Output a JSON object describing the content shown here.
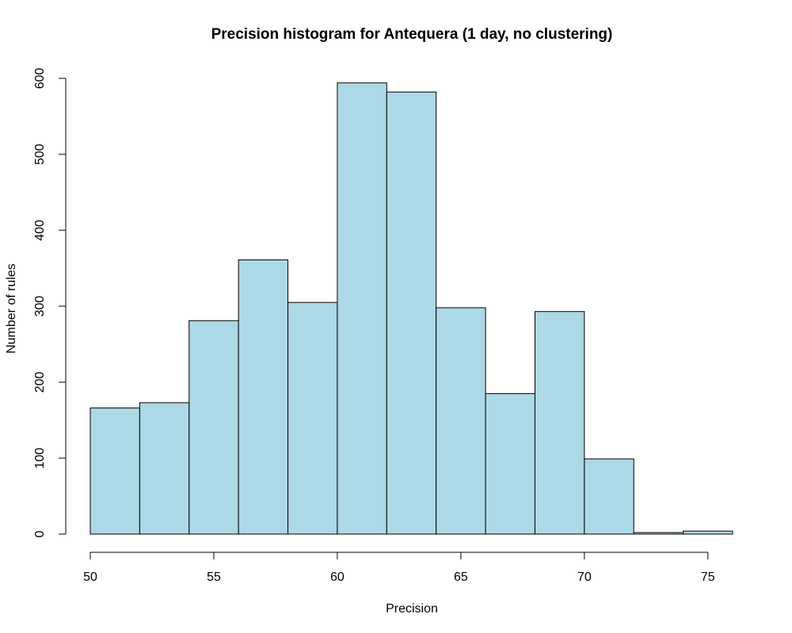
{
  "chart_data": {
    "type": "bar",
    "title": "Precision histogram for Antequera (1  day, no clustering)",
    "xlabel": "Precision",
    "ylabel": "Number of rules",
    "bin_edges": [
      50,
      52,
      54,
      56,
      58,
      60,
      62,
      64,
      66,
      68,
      70,
      72,
      74,
      76
    ],
    "values": [
      166,
      173,
      281,
      361,
      305,
      594,
      582,
      298,
      185,
      293,
      99,
      2,
      4
    ],
    "xlim": [
      50,
      76
    ],
    "ylim": [
      0,
      600
    ],
    "x_ticks": [
      50,
      55,
      60,
      65,
      70,
      75
    ],
    "y_ticks": [
      0,
      100,
      200,
      300,
      400,
      500,
      600
    ],
    "bar_color": "#add8e6",
    "grid": false,
    "legend": "none"
  }
}
